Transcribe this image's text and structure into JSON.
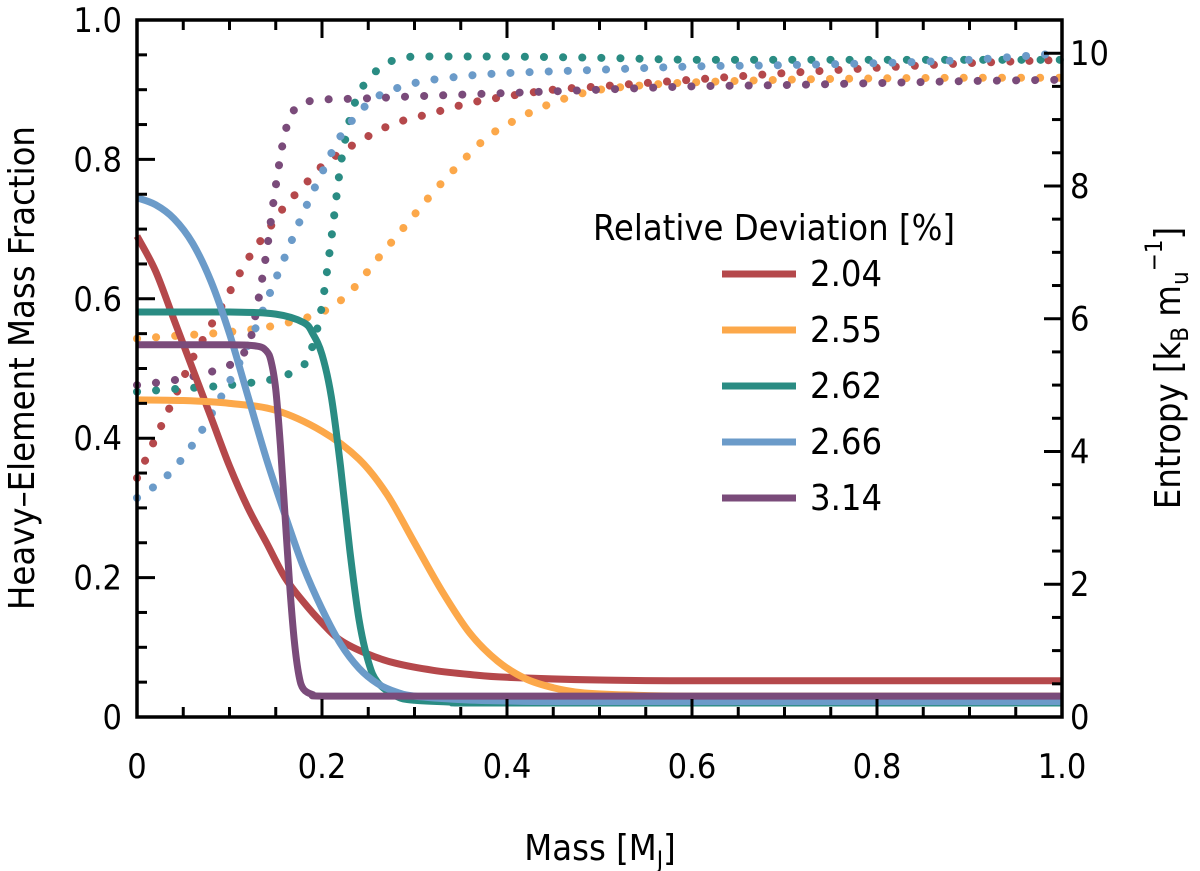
{
  "chart_data": {
    "type": "line",
    "xlabel": "Mass [M",
    "xlabel_sub": "J",
    "xlabel_end": "]",
    "ylabel": "Heavy–Element Mass Fraction",
    "y2label_pre": "Entropy [k",
    "y2label_sub1": "B",
    "y2label_mid": " m",
    "y2label_sub2": "u",
    "y2label_sup": "−1",
    "y2label_end": "]",
    "xlim": [
      0,
      1
    ],
    "ylim": [
      0,
      1
    ],
    "y2lim": [
      0,
      10.5
    ],
    "x_ticks": [
      "0",
      "0.2",
      "0.4",
      "0.6",
      "0.8",
      "1.0"
    ],
    "y_ticks": [
      "0",
      "0.2",
      "0.4",
      "0.6",
      "0.8",
      "1.0"
    ],
    "y2_ticks": [
      "0",
      "2",
      "4",
      "6",
      "8",
      "10"
    ],
    "legend": {
      "title": "Relative Deviation [%]",
      "placement": "center-right"
    },
    "series": [
      {
        "name": "2.04",
        "color": "#b5484b",
        "composition": {
          "x": [
            0,
            0.02,
            0.04,
            0.06,
            0.08,
            0.1,
            0.12,
            0.14,
            0.16,
            0.18,
            0.2,
            0.22,
            0.25,
            0.28,
            0.32,
            0.36,
            0.4,
            0.5,
            0.6,
            0.8,
            1.0
          ],
          "y": [
            0.69,
            0.64,
            0.57,
            0.5,
            0.43,
            0.36,
            0.3,
            0.25,
            0.2,
            0.165,
            0.135,
            0.11,
            0.09,
            0.077,
            0.067,
            0.061,
            0.057,
            0.053,
            0.052,
            0.052,
            0.052
          ]
        },
        "entropy": {
          "x": [
            0,
            0.02,
            0.04,
            0.06,
            0.08,
            0.1,
            0.12,
            0.14,
            0.16,
            0.18,
            0.2,
            0.22,
            0.25,
            0.28,
            0.32,
            0.36,
            0.4,
            0.45,
            0.5,
            0.6,
            0.7,
            0.8,
            0.9,
            1.0
          ],
          "y": [
            3.6,
            4.2,
            4.8,
            5.4,
            5.9,
            6.4,
            6.9,
            7.3,
            7.7,
            8.0,
            8.3,
            8.5,
            8.75,
            8.95,
            9.1,
            9.25,
            9.35,
            9.45,
            9.5,
            9.6,
            9.7,
            9.78,
            9.85,
            9.9
          ]
        }
      },
      {
        "name": "2.55",
        "color": "#fca84a",
        "composition": {
          "x": [
            0,
            0.05,
            0.1,
            0.15,
            0.2,
            0.24,
            0.27,
            0.3,
            0.33,
            0.36,
            0.39,
            0.42,
            0.45,
            0.48,
            0.52,
            0.6,
            0.8,
            1.0
          ],
          "y": [
            0.455,
            0.454,
            0.45,
            0.44,
            0.41,
            0.37,
            0.32,
            0.25,
            0.18,
            0.12,
            0.08,
            0.055,
            0.042,
            0.035,
            0.032,
            0.03,
            0.03,
            0.03
          ]
        },
        "entropy": {
          "x": [
            0,
            0.05,
            0.1,
            0.15,
            0.2,
            0.23,
            0.26,
            0.29,
            0.32,
            0.35,
            0.38,
            0.41,
            0.44,
            0.47,
            0.5,
            0.55,
            0.6,
            0.7,
            0.8,
            0.9,
            1.0
          ],
          "y": [
            5.7,
            5.75,
            5.8,
            5.9,
            6.1,
            6.4,
            6.9,
            7.4,
            7.9,
            8.35,
            8.75,
            9.0,
            9.2,
            9.35,
            9.45,
            9.52,
            9.56,
            9.6,
            9.62,
            9.63,
            9.63
          ]
        }
      },
      {
        "name": "2.62",
        "color": "#2a8c83",
        "composition": {
          "x": [
            0,
            0.1,
            0.15,
            0.18,
            0.19,
            0.2,
            0.21,
            0.22,
            0.23,
            0.24,
            0.25,
            0.26,
            0.28,
            0.3,
            0.35,
            0.4,
            1.0
          ],
          "y": [
            0.581,
            0.581,
            0.578,
            0.566,
            0.55,
            0.52,
            0.46,
            0.36,
            0.24,
            0.14,
            0.08,
            0.05,
            0.03,
            0.024,
            0.021,
            0.02,
            0.02
          ]
        },
        "entropy": {
          "x": [
            0,
            0.05,
            0.1,
            0.15,
            0.18,
            0.19,
            0.2,
            0.21,
            0.22,
            0.23,
            0.24,
            0.25,
            0.26,
            0.27,
            0.28,
            0.3,
            0.35,
            0.4,
            0.5,
            0.6,
            0.7,
            0.8,
            0.9,
            1.0
          ],
          "y": [
            4.9,
            4.95,
            5.0,
            5.1,
            5.3,
            5.6,
            6.2,
            7.2,
            8.3,
            9.0,
            9.4,
            9.6,
            9.75,
            9.85,
            9.9,
            9.95,
            9.95,
            9.95,
            9.93,
            9.9,
            9.9,
            9.9,
            9.9,
            9.9
          ]
        }
      },
      {
        "name": "2.66",
        "color": "#6b9bc9",
        "composition": {
          "x": [
            0,
            0.02,
            0.04,
            0.06,
            0.08,
            0.1,
            0.12,
            0.14,
            0.16,
            0.18,
            0.2,
            0.22,
            0.24,
            0.26,
            0.28,
            0.3,
            0.35,
            0.4,
            0.5,
            1.0
          ],
          "y": [
            0.745,
            0.735,
            0.715,
            0.68,
            0.625,
            0.55,
            0.46,
            0.37,
            0.29,
            0.215,
            0.155,
            0.105,
            0.07,
            0.048,
            0.036,
            0.03,
            0.025,
            0.023,
            0.022,
            0.022
          ]
        },
        "entropy": {
          "x": [
            0,
            0.03,
            0.06,
            0.09,
            0.12,
            0.15,
            0.18,
            0.2,
            0.22,
            0.24,
            0.26,
            0.3,
            0.35,
            0.4,
            0.5,
            0.6,
            0.7,
            0.8,
            0.9,
            1.0
          ],
          "y": [
            3.3,
            3.6,
            4.1,
            4.8,
            5.6,
            6.6,
            7.6,
            8.2,
            8.75,
            9.1,
            9.35,
            9.55,
            9.65,
            9.7,
            9.75,
            9.8,
            9.82,
            9.85,
            9.9,
            10.0
          ]
        }
      },
      {
        "name": "3.14",
        "color": "#7a4b7a",
        "composition": {
          "x": [
            0,
            0.1,
            0.13,
            0.14,
            0.145,
            0.15,
            0.155,
            0.16,
            0.165,
            0.17,
            0.175,
            0.18,
            0.19,
            0.2,
            0.3,
            1.0
          ],
          "y": [
            0.534,
            0.534,
            0.532,
            0.525,
            0.51,
            0.47,
            0.39,
            0.29,
            0.19,
            0.11,
            0.06,
            0.04,
            0.032,
            0.03,
            0.03,
            0.03
          ]
        },
        "entropy": {
          "x": [
            0,
            0.05,
            0.1,
            0.12,
            0.13,
            0.14,
            0.15,
            0.16,
            0.17,
            0.18,
            0.2,
            0.25,
            0.3,
            0.4,
            0.5,
            0.6,
            0.7,
            0.8,
            0.9,
            1.0
          ],
          "y": [
            5.0,
            5.1,
            5.3,
            5.6,
            6.2,
            7.0,
            8.0,
            8.8,
            9.15,
            9.25,
            9.3,
            9.32,
            9.35,
            9.4,
            9.45,
            9.5,
            9.52,
            9.55,
            9.58,
            9.6
          ]
        }
      }
    ]
  }
}
